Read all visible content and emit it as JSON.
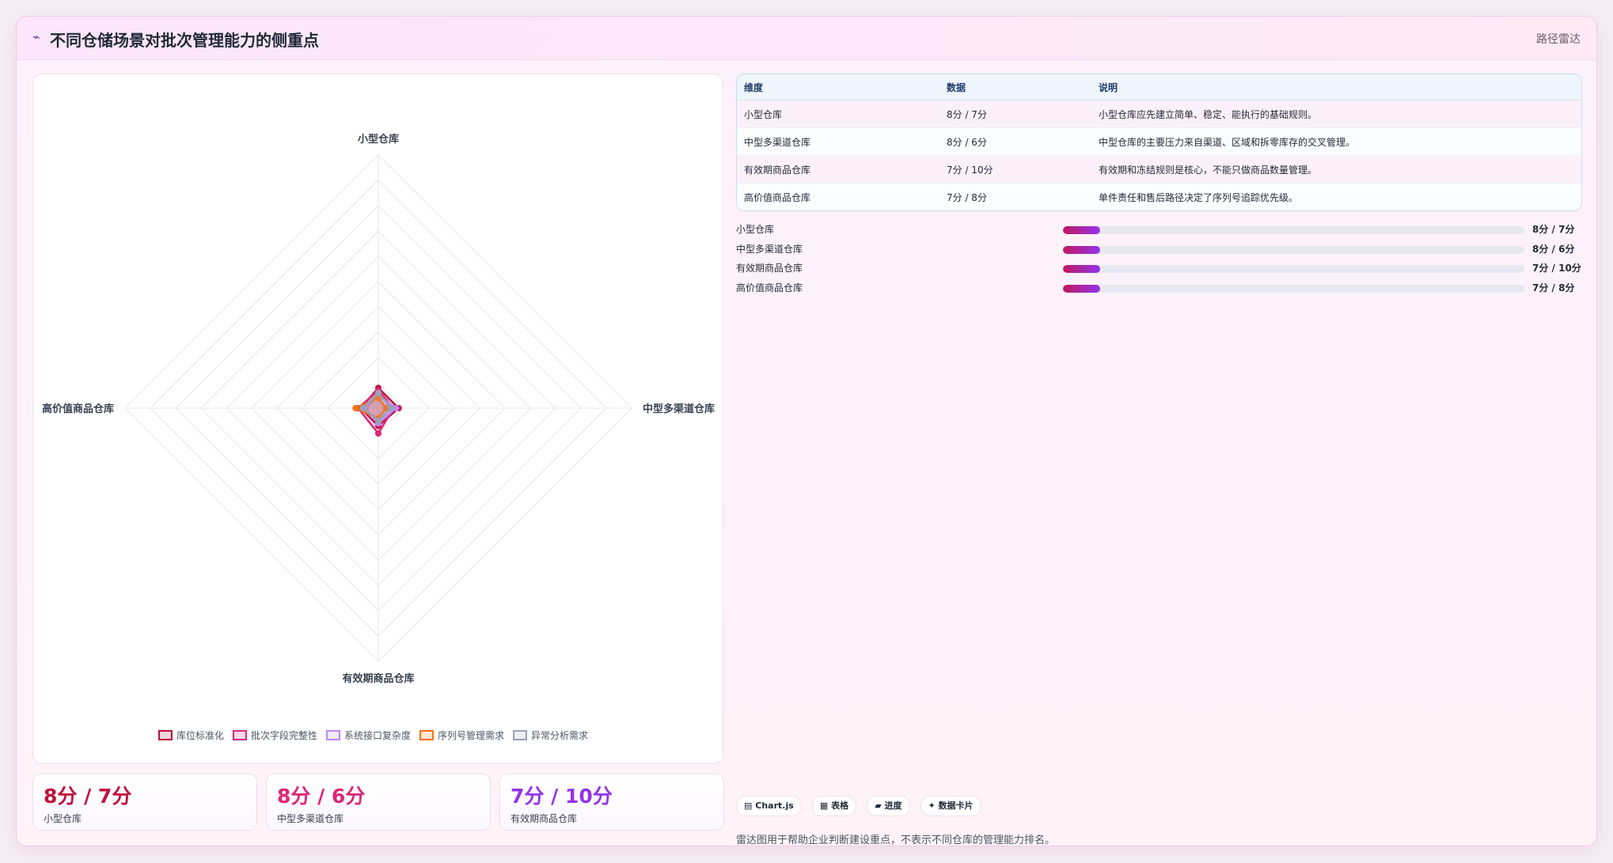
{
  "header": {
    "icon": "⌁",
    "title": "不同仓储场景对批次管理能力的侧重点",
    "badge": "路径雷达"
  },
  "chart_data": {
    "type": "radar",
    "title": "",
    "axes": [
      "小型仓库",
      "中型多渠道仓库",
      "有效期商品仓库",
      "高价值商品仓库"
    ],
    "rmax": 100,
    "grid_levels": 10,
    "legend_position": "bottom",
    "series": [
      {
        "name": "库位标准化",
        "values": [
          8,
          8,
          7,
          7
        ],
        "color": "#be123c"
      },
      {
        "name": "批次字段完整性",
        "values": [
          7,
          6,
          10,
          8
        ],
        "color": "#db2777"
      },
      {
        "name": "系统接口复杂度",
        "values": [
          5,
          7,
          6,
          5
        ],
        "color": "#c084fc"
      },
      {
        "name": "序列号管理需求",
        "values": [
          4,
          3,
          4,
          9
        ],
        "color": "#f97316"
      },
      {
        "name": "异常分析需求",
        "values": [
          6,
          5,
          5,
          6
        ],
        "color": "#94a3b8"
      }
    ]
  },
  "stats": [
    {
      "value": "8分 / 7分",
      "label": "小型仓库",
      "color": "#be123c"
    },
    {
      "value": "8分 / 6分",
      "label": "中型多渠道仓库",
      "color": "#db2777"
    },
    {
      "value": "7分 / 10分",
      "label": "有效期商品仓库",
      "color": "#9333ea"
    }
  ],
  "table": {
    "headers": [
      "维度",
      "数据",
      "说明"
    ],
    "rows": [
      [
        "小型仓库",
        "8分 / 7分",
        "小型仓库应先建立简单、稳定、能执行的基础规则。"
      ],
      [
        "中型多渠道仓库",
        "8分 / 6分",
        "中型仓库的主要压力来自渠道、区域和拆零库存的交叉管理。"
      ],
      [
        "有效期商品仓库",
        "7分 / 10分",
        "有效期和冻结规则是核心，不能只做商品数量管理。"
      ],
      [
        "高价值商品仓库",
        "7分 / 8分",
        "单件责任和售后路径决定了序列号追踪优先级。"
      ]
    ]
  },
  "progress": [
    {
      "label": "小型仓库",
      "value": "8分 / 7分",
      "fraction": 0.08
    },
    {
      "label": "中型多渠道仓库",
      "value": "8分 / 6分",
      "fraction": 0.08
    },
    {
      "label": "有效期商品仓库",
      "value": "7分 / 10分",
      "fraction": 0.08
    },
    {
      "label": "高价值商品仓库",
      "value": "7分 / 8分",
      "fraction": 0.08
    }
  ],
  "chips": [
    {
      "icon": "▤",
      "label": "Chart.js"
    },
    {
      "icon": "▦",
      "label": "表格"
    },
    {
      "icon": "▰",
      "label": "进度"
    },
    {
      "icon": "✦",
      "label": "数据卡片"
    }
  ],
  "footnote": "雷达图用于帮助企业判断建设重点，不表示不同仓库的管理能力排名。"
}
